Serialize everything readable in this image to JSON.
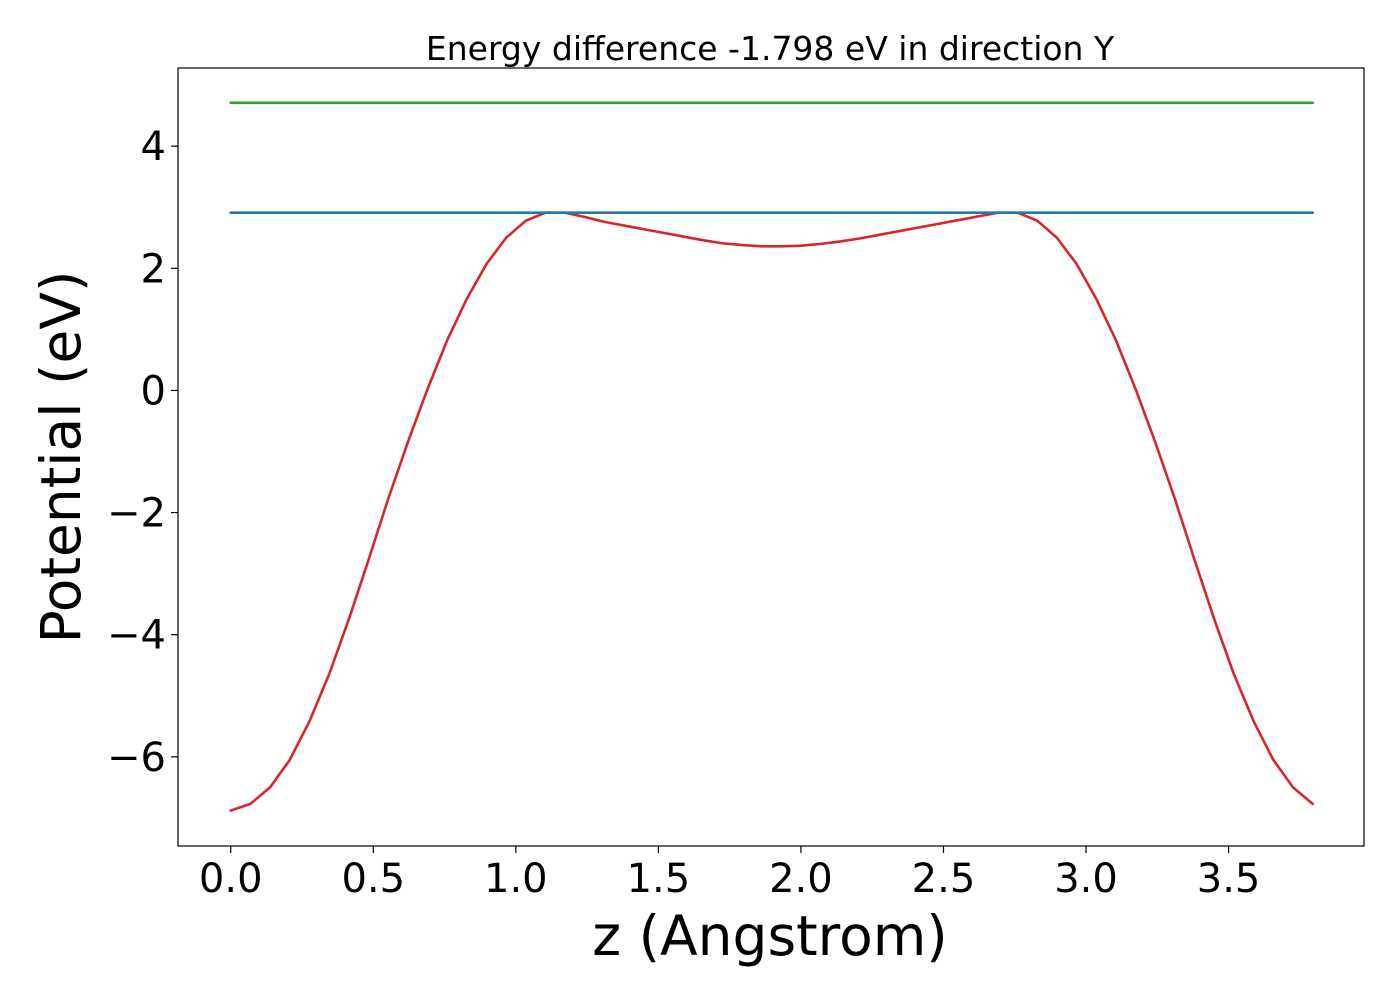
{
  "chart_data": {
    "type": "line",
    "title": "Energy difference -1.798 eV in direction Y",
    "xlabel": "z (Angstrom)",
    "ylabel": "Potential (eV)",
    "xlim": [
      -0.185,
      3.975
    ],
    "ylim": [
      -7.46,
      5.28
    ],
    "grid": false,
    "x_ticks": [
      {
        "value": 0.0,
        "label": "0.0"
      },
      {
        "value": 0.5,
        "label": "0.5"
      },
      {
        "value": 1.0,
        "label": "1.0"
      },
      {
        "value": 1.5,
        "label": "1.5"
      },
      {
        "value": 2.0,
        "label": "2.0"
      },
      {
        "value": 2.5,
        "label": "2.5"
      },
      {
        "value": 3.0,
        "label": "3.0"
      },
      {
        "value": 3.5,
        "label": "3.5"
      }
    ],
    "y_ticks": [
      {
        "value": -6,
        "label": "−6"
      },
      {
        "value": -4,
        "label": "−4"
      },
      {
        "value": -2,
        "label": "−2"
      },
      {
        "value": 0,
        "label": "0"
      },
      {
        "value": 2,
        "label": "2"
      },
      {
        "value": 4,
        "label": "4"
      }
    ],
    "series": [
      {
        "color": "#d62728",
        "x": [
          0.0,
          0.069,
          0.138,
          0.207,
          0.276,
          0.345,
          0.414,
          0.483,
          0.552,
          0.621,
          0.69,
          0.759,
          0.828,
          0.897,
          0.966,
          1.035,
          1.104,
          1.173,
          1.242,
          1.311,
          1.38,
          1.449,
          1.518,
          1.587,
          1.656,
          1.725,
          1.794,
          1.863,
          1.932,
          2.001,
          2.07,
          2.139,
          2.208,
          2.277,
          2.346,
          2.415,
          2.484,
          2.553,
          2.622,
          2.691,
          2.76,
          2.829,
          2.898,
          2.967,
          3.036,
          3.105,
          3.174,
          3.243,
          3.312,
          3.381,
          3.45,
          3.519,
          3.588,
          3.657,
          3.726,
          3.795
        ],
        "y": [
          -6.88,
          -6.77,
          -6.5,
          -6.05,
          -5.42,
          -4.65,
          -3.75,
          -2.78,
          -1.78,
          -0.85,
          0.02,
          0.82,
          1.5,
          2.07,
          2.5,
          2.78,
          2.91,
          2.91,
          2.84,
          2.76,
          2.7,
          2.64,
          2.58,
          2.52,
          2.46,
          2.41,
          2.38,
          2.36,
          2.36,
          2.37,
          2.4,
          2.44,
          2.49,
          2.55,
          2.61,
          2.67,
          2.73,
          2.79,
          2.85,
          2.91,
          2.91,
          2.78,
          2.5,
          2.07,
          1.5,
          0.82,
          0.02,
          -0.85,
          -1.78,
          -2.78,
          -3.75,
          -4.65,
          -5.42,
          -6.05,
          -6.5,
          -6.77
        ]
      },
      {
        "color": "#1f77b4",
        "x": [
          0.0,
          3.795
        ],
        "y": [
          2.91,
          2.91
        ]
      },
      {
        "color": "#2ca02c",
        "x": [
          0.0,
          3.795
        ],
        "y": [
          4.71,
          4.71
        ]
      }
    ]
  }
}
